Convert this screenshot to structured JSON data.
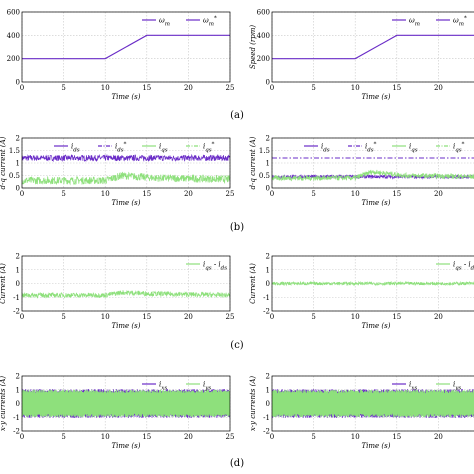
{
  "panel_labels": [
    "(a)",
    "(b)",
    "(c)",
    "(d)"
  ],
  "colors": {
    "purple": "#6a2cc7",
    "green": "#8ee07c",
    "grid": "#c8c8c8"
  },
  "chart_data": [
    {
      "id": "a-left",
      "type": "line",
      "xlabel": "Time (s)",
      "ylabel": "",
      "xlim": [
        0,
        25
      ],
      "ylim": [
        0,
        600
      ],
      "xticks": [
        0,
        5,
        10,
        15,
        20,
        25
      ],
      "yticks": [
        0,
        200,
        400,
        600
      ],
      "grid": true,
      "legend_position": "top",
      "series": [
        {
          "name": "ωm*",
          "style": "line",
          "color": "#6a2cc7",
          "x": [
            0,
            10,
            15,
            25
          ],
          "y": [
            200,
            200,
            400,
            400
          ]
        }
      ],
      "legend": [
        {
          "label": "ωm",
          "color": "#6a2cc7",
          "dash": "solid"
        },
        {
          "label": "ωm*",
          "color": "#6a2cc7",
          "dash": "solid"
        }
      ]
    },
    {
      "id": "a-right",
      "type": "line",
      "xlabel": "Time (s)",
      "ylabel": "Speed (rpm)",
      "xlim": [
        0,
        25
      ],
      "ylim": [
        0,
        600
      ],
      "xticks": [
        0,
        5,
        10,
        15,
        20,
        25
      ],
      "yticks": [
        0,
        200,
        400,
        600
      ],
      "grid": true,
      "legend_position": "top",
      "series": [
        {
          "name": "ωm*",
          "style": "line",
          "color": "#6a2cc7",
          "x": [
            0,
            10,
            15,
            25
          ],
          "y": [
            200,
            200,
            400,
            400
          ]
        }
      ],
      "legend": [
        {
          "label": "ωm",
          "color": "#6a2cc7",
          "dash": "solid"
        },
        {
          "label": "ωm*",
          "color": "#6a2cc7",
          "dash": "solid"
        }
      ]
    },
    {
      "id": "b-left",
      "type": "line",
      "xlabel": "Time (s)",
      "ylabel": "d-q current (A)",
      "xlim": [
        0,
        25
      ],
      "ylim": [
        0,
        2
      ],
      "xticks": [
        0,
        5,
        10,
        15,
        20,
        25
      ],
      "yticks": [
        0,
        0.5,
        1,
        1.5,
        2
      ],
      "grid": true,
      "legend_position": "top",
      "series": [
        {
          "name": "ids",
          "style": "noise",
          "color": "#6a2cc7",
          "x": [
            0,
            25
          ],
          "y": [
            1.2,
            1.2
          ],
          "amp": 0.12
        },
        {
          "name": "iqs",
          "style": "noise",
          "color": "#8ee07c",
          "x": [
            0,
            10,
            12,
            16,
            25
          ],
          "y": [
            0.3,
            0.3,
            0.5,
            0.4,
            0.35
          ],
          "amp": 0.15
        }
      ],
      "legend": [
        {
          "label": "ids",
          "color": "#6a2cc7",
          "dash": "solid"
        },
        {
          "label": "ids*",
          "color": "#6a2cc7",
          "dash": "dashdot"
        },
        {
          "label": "iqs",
          "color": "#8ee07c",
          "dash": "solid"
        },
        {
          "label": "iqs*",
          "color": "#8ee07c",
          "dash": "dashdot"
        }
      ]
    },
    {
      "id": "b-right",
      "type": "line",
      "xlabel": "Time (s)",
      "ylabel": "d-q current (A)",
      "xlim": [
        0,
        25
      ],
      "ylim": [
        0,
        2
      ],
      "xticks": [
        0,
        5,
        10,
        15,
        20,
        25
      ],
      "yticks": [
        0,
        0.5,
        1,
        1.5,
        2
      ],
      "grid": true,
      "legend_position": "top",
      "series": [
        {
          "name": "ids*",
          "style": "dashdot",
          "color": "#6a2cc7",
          "x": [
            0,
            25
          ],
          "y": [
            1.2,
            1.2
          ]
        },
        {
          "name": "ids",
          "style": "noise",
          "color": "#6a2cc7",
          "x": [
            0,
            25
          ],
          "y": [
            0.45,
            0.45
          ],
          "amp": 0.07
        },
        {
          "name": "iqs",
          "style": "noise",
          "color": "#8ee07c",
          "x": [
            0,
            10,
            12,
            16,
            25
          ],
          "y": [
            0.4,
            0.4,
            0.65,
            0.5,
            0.45
          ],
          "amp": 0.1
        }
      ],
      "legend": [
        {
          "label": "ids",
          "color": "#6a2cc7",
          "dash": "solid"
        },
        {
          "label": "ids*",
          "color": "#6a2cc7",
          "dash": "dashdot"
        },
        {
          "label": "iqs",
          "color": "#8ee07c",
          "dash": "solid"
        },
        {
          "label": "iqs*",
          "color": "#8ee07c",
          "dash": "dashdot"
        }
      ]
    },
    {
      "id": "c-left",
      "type": "line",
      "xlabel": "Time (s)",
      "ylabel": "Current (A)",
      "xlim": [
        0,
        25
      ],
      "ylim": [
        -2,
        2
      ],
      "xticks": [
        0,
        5,
        10,
        15,
        20,
        25
      ],
      "yticks": [
        -2,
        -1,
        0,
        1,
        2
      ],
      "grid": true,
      "legend_position": "top",
      "series": [
        {
          "name": "iqs - ids",
          "style": "noise",
          "color": "#8ee07c",
          "x": [
            0,
            10,
            12,
            16,
            25
          ],
          "y": [
            -0.85,
            -0.85,
            -0.65,
            -0.75,
            -0.85
          ],
          "amp": 0.18
        }
      ],
      "legend": [
        {
          "label": "iqs - ids",
          "color": "#8ee07c",
          "dash": "solid"
        }
      ]
    },
    {
      "id": "c-right",
      "type": "line",
      "xlabel": "Time (s)",
      "ylabel": "Current (A)",
      "xlim": [
        0,
        25
      ],
      "ylim": [
        -2,
        2
      ],
      "xticks": [
        0,
        5,
        10,
        15,
        20,
        25
      ],
      "yticks": [
        -2,
        -1,
        0,
        1,
        2
      ],
      "grid": true,
      "legend_position": "top",
      "series": [
        {
          "name": "iqs - ids",
          "style": "noise",
          "color": "#8ee07c",
          "x": [
            0,
            25
          ],
          "y": [
            0.0,
            0.0
          ],
          "amp": 0.12
        }
      ],
      "legend": [
        {
          "label": "iqs - ids",
          "color": "#8ee07c",
          "dash": "solid"
        }
      ]
    },
    {
      "id": "d-left",
      "type": "line",
      "xlabel": "Time (s)",
      "ylabel": "x-y currents (A)",
      "xlim": [
        0,
        25
      ],
      "ylim": [
        -2,
        2
      ],
      "xticks": [
        0,
        5,
        10,
        15,
        20,
        25
      ],
      "yticks": [
        -2,
        -1,
        0,
        1,
        2
      ],
      "grid": true,
      "legend_position": "top",
      "series": [
        {
          "name": "ixs",
          "style": "band",
          "color": "#6a2cc7",
          "x": [
            0,
            25
          ],
          "y": [
            0,
            0
          ],
          "amp": 1.05
        },
        {
          "name": "iys",
          "style": "band",
          "color": "#8ee07c",
          "x": [
            0,
            25
          ],
          "y": [
            0,
            0
          ],
          "amp": 1.0
        }
      ],
      "legend": [
        {
          "label": "ixs",
          "color": "#6a2cc7",
          "dash": "solid"
        },
        {
          "label": "iys",
          "color": "#8ee07c",
          "dash": "solid"
        }
      ]
    },
    {
      "id": "d-right",
      "type": "line",
      "xlabel": "Time (s)",
      "ylabel": "x-y currents (A)",
      "xlim": [
        0,
        25
      ],
      "ylim": [
        -2,
        2
      ],
      "xticks": [
        0,
        5,
        10,
        15,
        20,
        25
      ],
      "yticks": [
        -2,
        -1,
        0,
        1,
        2
      ],
      "grid": true,
      "legend_position": "top",
      "series": [
        {
          "name": "ixs",
          "style": "band",
          "color": "#6a2cc7",
          "x": [
            0,
            25
          ],
          "y": [
            0,
            0
          ],
          "amp": 1.05
        },
        {
          "name": "iys",
          "style": "band",
          "color": "#8ee07c",
          "x": [
            0,
            25
          ],
          "y": [
            0,
            0
          ],
          "amp": 1.0
        }
      ],
      "legend": [
        {
          "label": "ixs",
          "color": "#6a2cc7",
          "dash": "solid"
        },
        {
          "label": "iys",
          "color": "#8ee07c",
          "dash": "solid"
        }
      ]
    }
  ]
}
